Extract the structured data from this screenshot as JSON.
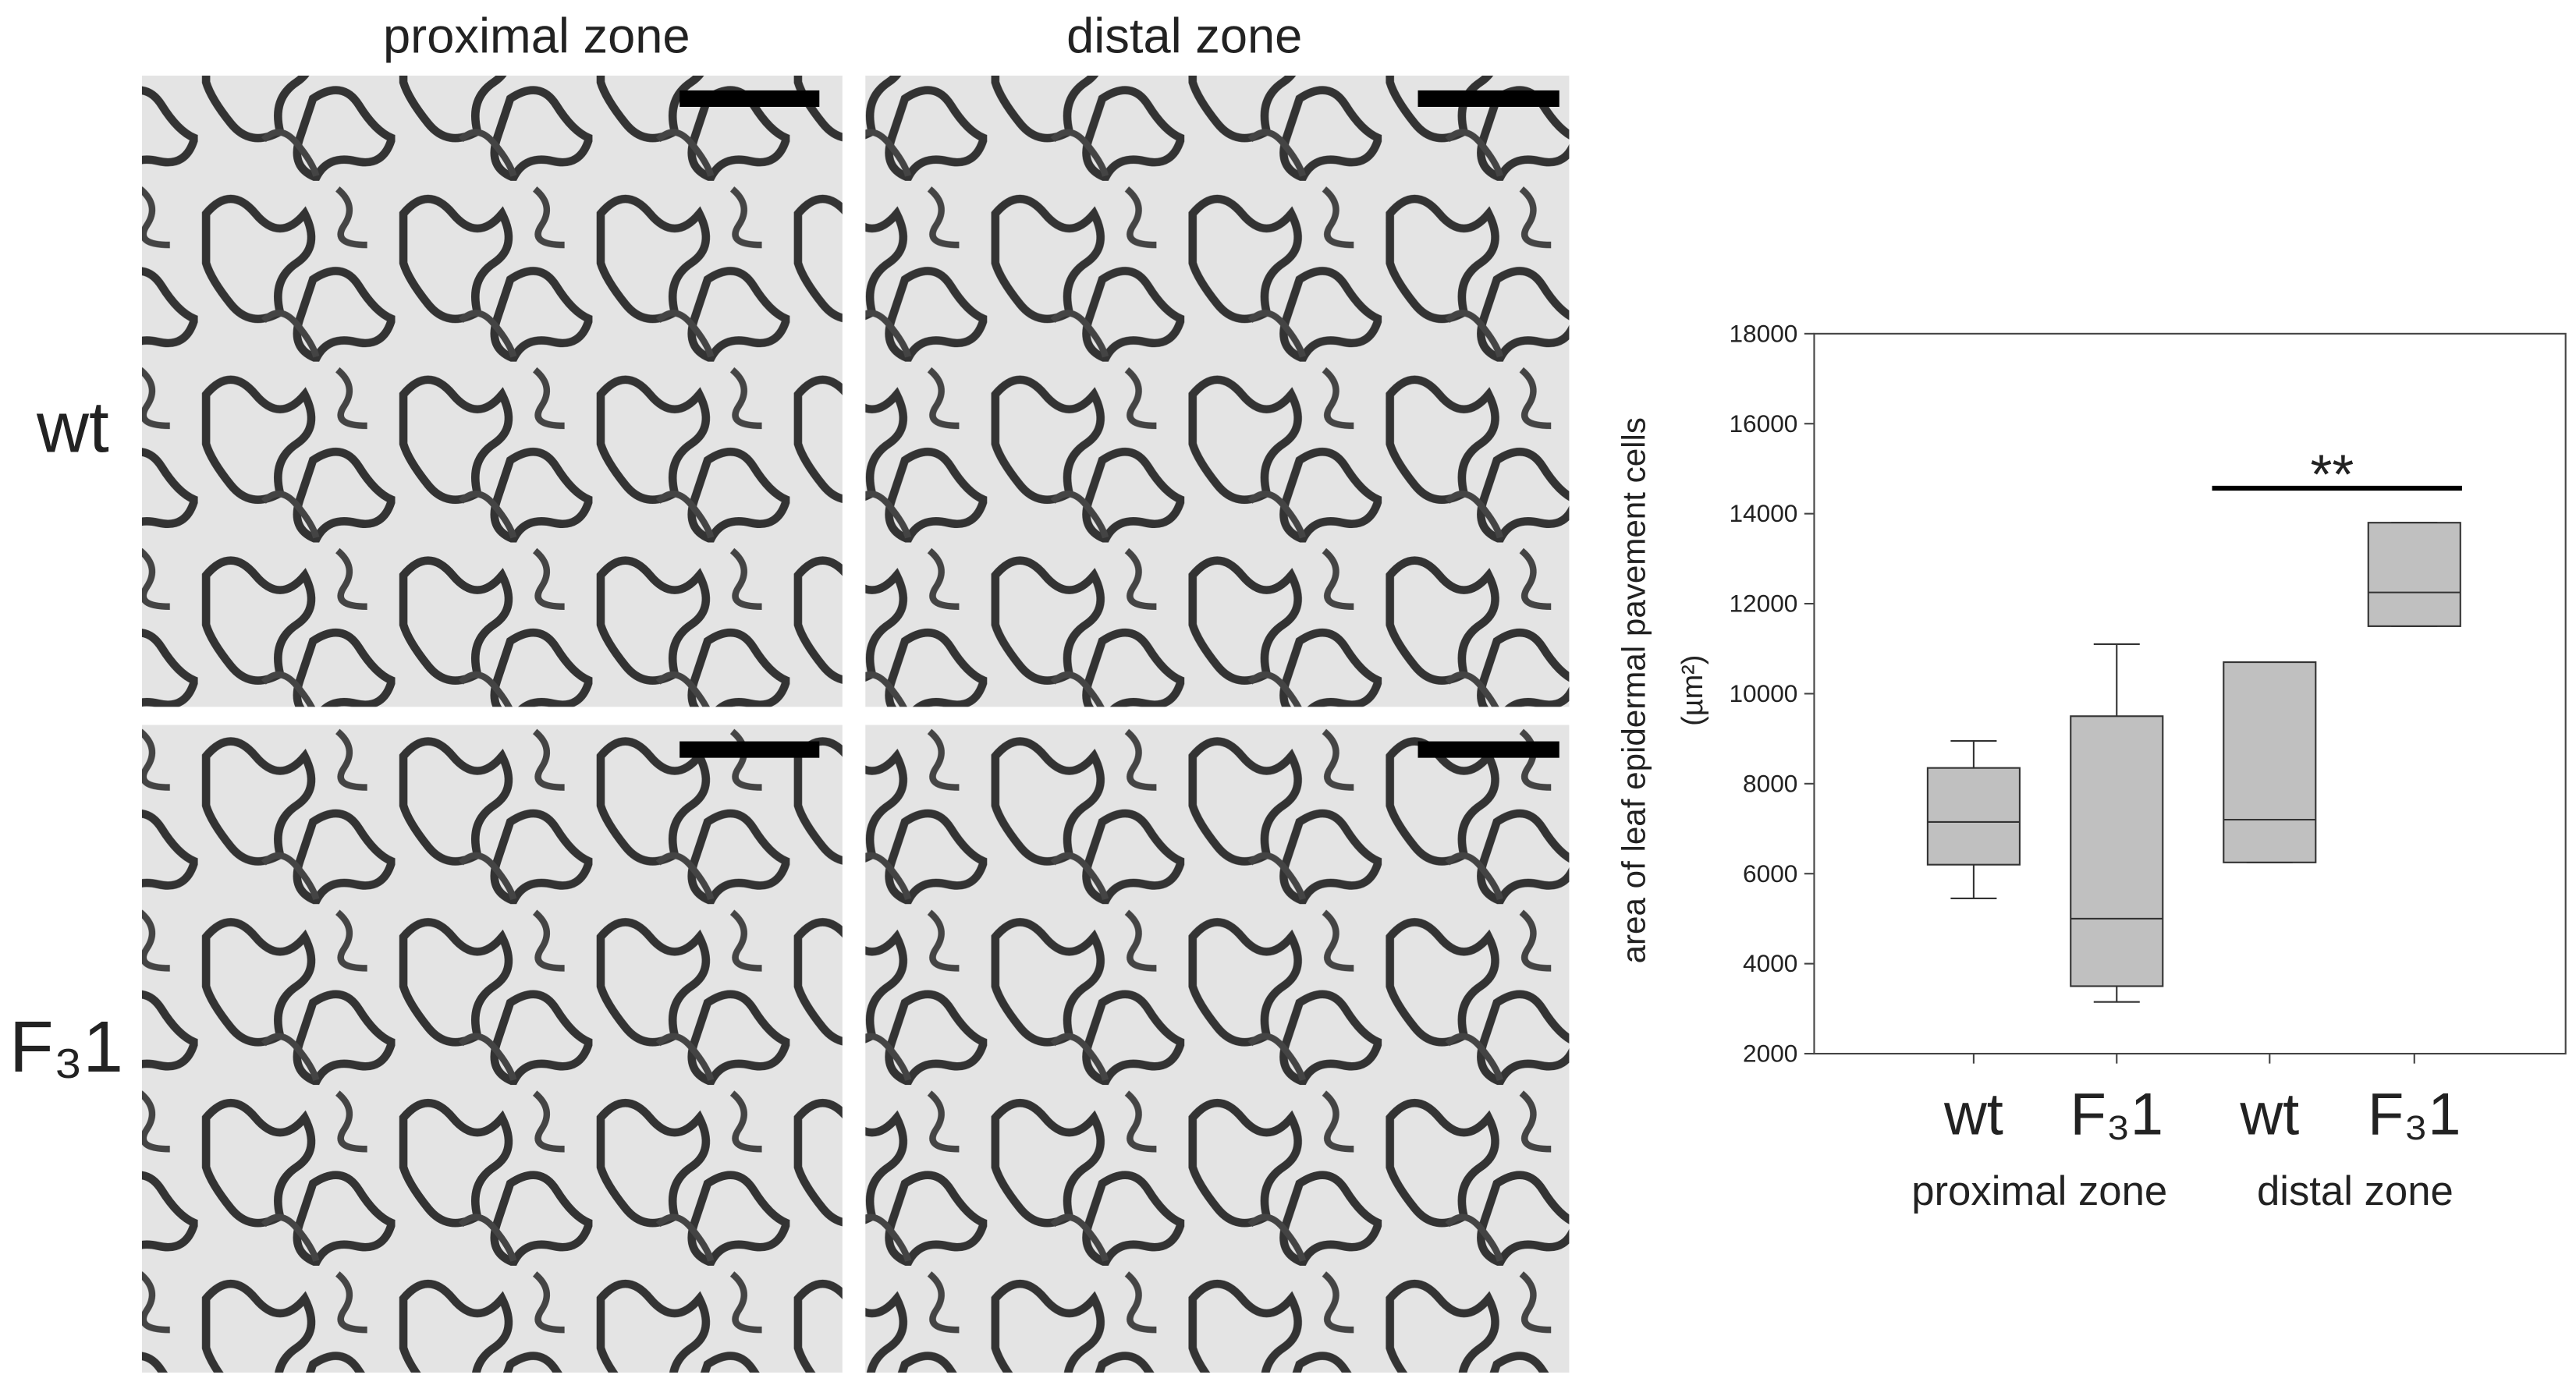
{
  "figure": {
    "columns": [
      "proximal zone",
      "distal zone"
    ],
    "rows": [
      "wt",
      "F₃1"
    ]
  },
  "chart_data": {
    "type": "box",
    "ylabel": "area of leaf epidermal pavement cells",
    "yunit": "(µm²)",
    "categories": [
      "wt",
      "F₃1",
      "wt",
      "F₃1"
    ],
    "groups": [
      "proximal zone",
      "distal zone"
    ],
    "boxes": [
      {
        "min": 5450,
        "q1": 6200,
        "median": 7150,
        "q3": 8350,
        "max": 8950
      },
      {
        "min": 3150,
        "q1": 3500,
        "median": 5000,
        "q3": 9500,
        "max": 11100
      },
      {
        "min": 6250,
        "q1": 6250,
        "median": 7200,
        "q3": 10700,
        "max": 10700
      },
      {
        "min": 11500,
        "q1": 11500,
        "median": 12250,
        "q3": 13800,
        "max": 13800
      }
    ],
    "color": "#c0c0c0",
    "annotation": "**",
    "ylim": [
      2000,
      18000
    ],
    "yticks": [
      2000,
      4000,
      6000,
      8000,
      10000,
      12000,
      14000,
      16000,
      18000
    ]
  }
}
